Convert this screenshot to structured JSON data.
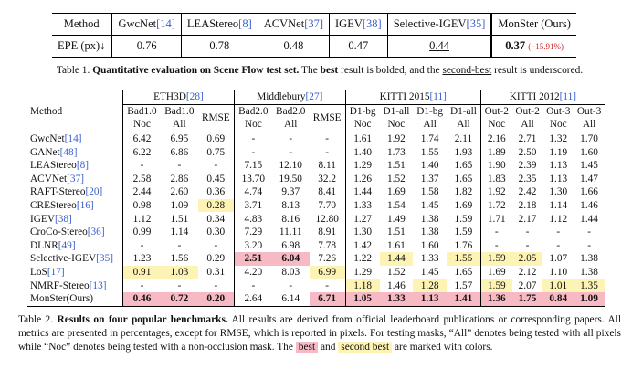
{
  "table1": {
    "header": {
      "label": "Method",
      "methods": [
        {
          "name": "GwcNet",
          "cite": "[14]"
        },
        {
          "name": "LEAStereo",
          "cite": "[8]"
        },
        {
          "name": "ACVNet",
          "cite": "[37]"
        },
        {
          "name": "IGEV",
          "cite": "[38]"
        },
        {
          "name": "Selective-IGEV",
          "cite": "[35]"
        },
        {
          "name": "MonSter (Ours)"
        }
      ]
    },
    "row": {
      "label": "EPE (px)↓",
      "values": [
        "0.76",
        "0.78",
        "0.48",
        "0.47",
        "0.44",
        "0.37"
      ],
      "delta": "(−15.91%)"
    },
    "best": 5,
    "second": 4
  },
  "caption1": [
    {
      "t": "Table 1. ",
      "s": "plain"
    },
    {
      "t": "Quantitative evaluation on Scene Flow test set.",
      "s": "bold"
    },
    {
      "t": " The ",
      "s": "plain"
    },
    {
      "t": "best",
      "s": "bold"
    },
    {
      "t": " result is bolded, and the ",
      "s": "plain"
    },
    {
      "t": "second-best",
      "s": "underline"
    },
    {
      "t": " result is underscored.",
      "s": "plain"
    }
  ],
  "table2": {
    "method_label": "Method",
    "groups": [
      {
        "name": "ETH3D",
        "cite": "[28]",
        "span": 3
      },
      {
        "name": "Middlebury",
        "cite": "[27]",
        "span": 3
      },
      {
        "name": "KITTI 2015",
        "cite": "[11]",
        "span": 4
      },
      {
        "name": "KITTI 2012",
        "cite": "[11]",
        "span": 4
      }
    ],
    "metrics": [
      "Bad1.0",
      "Bad1.0",
      "RMSE",
      "Bad2.0",
      "Bad2.0",
      "RMSE",
      "D1-bg",
      "D1-all",
      "D1-bg",
      "D1-all",
      "Out-2",
      "Out-2",
      "Out-3",
      "Out-3"
    ],
    "masks": [
      "Noc",
      "All",
      null,
      "Noc",
      "All",
      null,
      "Noc",
      "Noc",
      "All",
      "All",
      "Noc",
      "All",
      "Noc",
      "All"
    ],
    "rows": [
      {
        "name": "GwcNet",
        "cite": "[14]",
        "values": [
          "6.42",
          "6.95",
          "0.69",
          "-",
          "-",
          "-",
          "1.61",
          "1.92",
          "1.74",
          "2.11",
          "2.16",
          "2.71",
          "1.32",
          "1.70"
        ],
        "best": [],
        "second": []
      },
      {
        "name": "GANet",
        "cite": "[48]",
        "values": [
          "6.22",
          "6.86",
          "0.75",
          "-",
          "-",
          "-",
          "1.40",
          "1.73",
          "1.55",
          "1.93",
          "1.89",
          "2.50",
          "1.19",
          "1.60"
        ],
        "best": [],
        "second": []
      },
      {
        "name": "LEAStereo",
        "cite": "[8]",
        "values": [
          "-",
          "-",
          "-",
          "7.15",
          "12.10",
          "8.11",
          "1.29",
          "1.51",
          "1.40",
          "1.65",
          "1.90",
          "2.39",
          "1.13",
          "1.45"
        ],
        "best": [],
        "second": []
      },
      {
        "name": "ACVNet",
        "cite": "[37]",
        "values": [
          "2.58",
          "2.86",
          "0.45",
          "13.70",
          "19.50",
          "32.2",
          "1.26",
          "1.52",
          "1.37",
          "1.65",
          "1.83",
          "2.35",
          "1.13",
          "1.47"
        ],
        "best": [],
        "second": []
      },
      {
        "name": "RAFT-Stereo",
        "cite": "[20]",
        "values": [
          "2.44",
          "2.60",
          "0.36",
          "4.74",
          "9.37",
          "8.41",
          "1.44",
          "1.69",
          "1.58",
          "1.82",
          "1.92",
          "2.42",
          "1.30",
          "1.66"
        ],
        "best": [],
        "second": []
      },
      {
        "name": "CREStereo",
        "cite": "[16]",
        "values": [
          "0.98",
          "1.09",
          "0.28",
          "3.71",
          "8.13",
          "7.70",
          "1.33",
          "1.54",
          "1.45",
          "1.69",
          "1.72",
          "2.18",
          "1.14",
          "1.46"
        ],
        "best": [],
        "second": [
          2
        ]
      },
      {
        "name": "IGEV",
        "cite": "[38]",
        "values": [
          "1.12",
          "1.51",
          "0.34",
          "4.83",
          "8.16",
          "12.80",
          "1.27",
          "1.49",
          "1.38",
          "1.59",
          "1.71",
          "2.17",
          "1.12",
          "1.44"
        ],
        "best": [],
        "second": []
      },
      {
        "name": "CroCo-Stereo",
        "cite": "[36]",
        "values": [
          "0.99",
          "1.14",
          "0.30",
          "7.29",
          "11.11",
          "8.91",
          "1.30",
          "1.51",
          "1.38",
          "1.59",
          "-",
          "-",
          "-",
          "-"
        ],
        "best": [],
        "second": []
      },
      {
        "name": "DLNR",
        "cite": "[49]",
        "values": [
          "-",
          "-",
          "-",
          "3.20",
          "6.98",
          "7.78",
          "1.42",
          "1.61",
          "1.60",
          "1.76",
          "-",
          "-",
          "-",
          "-"
        ],
        "best": [],
        "second": []
      },
      {
        "name": "Selective-IGEV",
        "cite": "[35]",
        "values": [
          "1.23",
          "1.56",
          "0.29",
          "2.51",
          "6.04",
          "7.26",
          "1.22",
          "1.44",
          "1.33",
          "1.55",
          "1.59",
          "2.05",
          "1.07",
          "1.38"
        ],
        "best": [
          3,
          4
        ],
        "second": [
          7,
          9,
          10,
          11
        ]
      },
      {
        "name": "LoS",
        "cite": "[17]",
        "values": [
          "0.91",
          "1.03",
          "0.31",
          "4.20",
          "8.03",
          "6.99",
          "1.29",
          "1.52",
          "1.45",
          "1.65",
          "1.69",
          "2.12",
          "1.10",
          "1.38"
        ],
        "best": [],
        "second": [
          0,
          1,
          5
        ]
      },
      {
        "name": "NMRF-Stereo",
        "cite": "[13]",
        "values": [
          "-",
          "-",
          "-",
          "-",
          "-",
          "-",
          "1.18",
          "1.46",
          "1.28",
          "1.57",
          "1.59",
          "2.07",
          "1.01",
          "1.35"
        ],
        "best": [],
        "second": [
          6,
          8,
          10,
          12,
          13
        ]
      },
      {
        "name": "MonSter(Ours)",
        "values": [
          "0.46",
          "0.72",
          "0.20",
          "2.64",
          "6.14",
          "6.71",
          "1.05",
          "1.33",
          "1.13",
          "1.41",
          "1.36",
          "1.75",
          "0.84",
          "1.09"
        ],
        "best": [
          0,
          1,
          2,
          5,
          6,
          7,
          8,
          9,
          10,
          11,
          12,
          13
        ],
        "second": []
      }
    ]
  },
  "caption2": [
    {
      "t": "Table 2. ",
      "s": "plain"
    },
    {
      "t": "Results on four popular benchmarks.",
      "s": "bold"
    },
    {
      "t": " All results are derived from official leaderboard publications or corresponding papers. All metrics are presented in percentages, except for RMSE, which is reported in pixels. For testing masks, “All” denotes being tested with all pixels while “Noc” denotes being tested with a non-occlusion mask. The ",
      "s": "plain"
    },
    {
      "t": "best",
      "s": "hl-best"
    },
    {
      "t": " and ",
      "s": "plain"
    },
    {
      "t": "second best",
      "s": "hl-second"
    },
    {
      "t": " are marked with colors.",
      "s": "plain"
    }
  ]
}
